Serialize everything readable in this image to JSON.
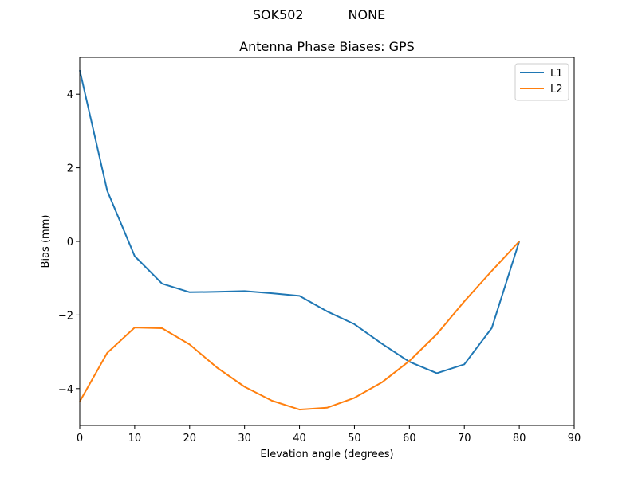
{
  "suptitle": "SOK502           NONE",
  "chart_data": {
    "type": "line",
    "title": "Antenna Phase Biases: GPS",
    "xlabel": "Elevation angle (degrees)",
    "ylabel": "Bias (mm)",
    "xlim": [
      0,
      90
    ],
    "ylim": [
      -5,
      5
    ],
    "xticks": [
      "0",
      "10",
      "20",
      "30",
      "40",
      "50",
      "60",
      "70",
      "80",
      "90"
    ],
    "yticks": [
      "−4",
      "−2",
      "0",
      "2",
      "4"
    ],
    "x": [
      0,
      5,
      10,
      15,
      20,
      25,
      30,
      35,
      40,
      45,
      50,
      55,
      60,
      65,
      70,
      75,
      80
    ],
    "series": [
      {
        "name": "L1",
        "color": "#1f77b4",
        "values": [
          4.65,
          1.38,
          -0.4,
          -1.15,
          -1.38,
          -1.37,
          -1.35,
          -1.41,
          -1.48,
          -1.9,
          -2.25,
          -2.78,
          -3.27,
          -3.58,
          -3.34,
          -2.35,
          0.0
        ]
      },
      {
        "name": "L2",
        "color": "#ff7f0e",
        "values": [
          -4.35,
          -3.03,
          -2.34,
          -2.36,
          -2.8,
          -3.43,
          -3.95,
          -4.33,
          -4.57,
          -4.52,
          -4.25,
          -3.83,
          -3.25,
          -2.52,
          -1.63,
          -0.8,
          0.0
        ]
      }
    ],
    "grid": false,
    "legend": "top-right"
  }
}
